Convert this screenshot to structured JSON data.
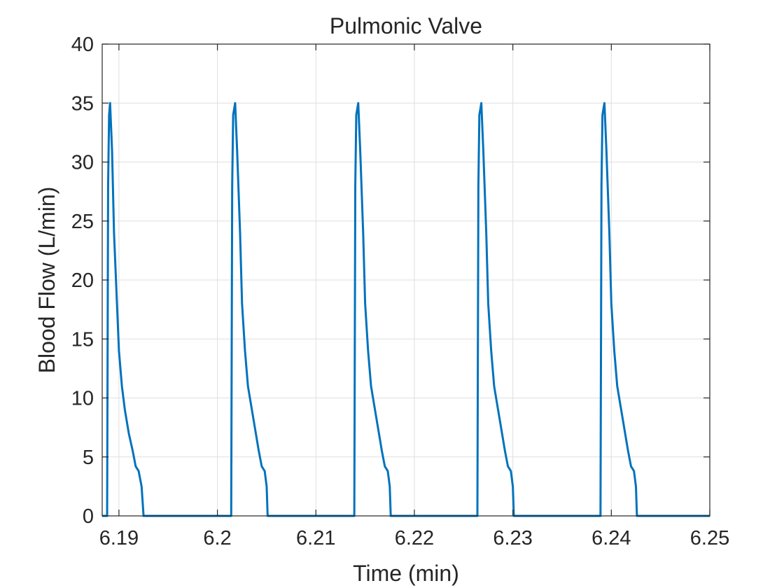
{
  "chart_data": {
    "type": "line",
    "title": "Pulmonic Valve",
    "xlabel": "Time (min)",
    "ylabel": "Blood Flow (L/min)",
    "xlim": [
      6.1883,
      6.25
    ],
    "ylim": [
      0,
      40
    ],
    "xticks": [
      6.19,
      6.2,
      6.21,
      6.22,
      6.23,
      6.24,
      6.25
    ],
    "xtick_labels": [
      "6.19",
      "6.2",
      "6.21",
      "6.22",
      "6.23",
      "6.24",
      "6.25"
    ],
    "yticks": [
      0,
      5,
      10,
      15,
      20,
      25,
      30,
      35,
      40
    ],
    "ytick_labels": [
      "0",
      "5",
      "10",
      "15",
      "20",
      "25",
      "30",
      "35",
      "40"
    ],
    "grid": true,
    "line_color": "#0072BD",
    "series": [
      {
        "x": [
          6.1883,
          6.1888,
          6.1889,
          6.189,
          6.1891,
          6.1893,
          6.1895,
          6.1898,
          6.19,
          6.1903,
          6.1906,
          6.191,
          6.1914,
          6.1917,
          6.192,
          6.1923,
          6.1925,
          6.1926,
          6.193,
          6.2012,
          6.2014,
          6.2015,
          6.2016,
          6.2018,
          6.202,
          6.2023,
          6.2025,
          6.2028,
          6.2031,
          6.2035,
          6.2039,
          6.2042,
          6.2045,
          6.2048,
          6.205,
          6.2051,
          6.2055,
          6.2137,
          6.2139,
          6.214,
          6.2141,
          6.2143,
          6.2145,
          6.2148,
          6.215,
          6.2153,
          6.2156,
          6.216,
          6.2164,
          6.2167,
          6.217,
          6.2173,
          6.2175,
          6.2176,
          6.218,
          6.2262,
          6.2264,
          6.2265,
          6.2266,
          6.2268,
          6.227,
          6.2273,
          6.2275,
          6.2278,
          6.2281,
          6.2285,
          6.2289,
          6.2292,
          6.2295,
          6.2298,
          6.23,
          6.2301,
          6.2305,
          6.2387,
          6.2389,
          6.239,
          6.2391,
          6.2393,
          6.2395,
          6.2398,
          6.24,
          6.2403,
          6.2406,
          6.241,
          6.2414,
          6.2417,
          6.242,
          6.2423,
          6.2425,
          6.2426,
          6.25
        ],
        "y": [
          0,
          0,
          28,
          34,
          35,
          31,
          24,
          18,
          14,
          11,
          9,
          7,
          5.5,
          4.2,
          3.8,
          2.5,
          0,
          0,
          0,
          0,
          0,
          28,
          34,
          35,
          31,
          24,
          18,
          14,
          11,
          9,
          7,
          5.5,
          4.2,
          3.8,
          2.5,
          0,
          0,
          0,
          0,
          28,
          34,
          35,
          31,
          24,
          18,
          14,
          11,
          9,
          7,
          5.5,
          4.2,
          3.8,
          2.5,
          0,
          0,
          0,
          0,
          28,
          34,
          35,
          31,
          24,
          18,
          14,
          11,
          9,
          7,
          5.5,
          4.2,
          3.8,
          2.5,
          0,
          0,
          0,
          0,
          28,
          34,
          35,
          31,
          24,
          18,
          14,
          11,
          9,
          7,
          5.5,
          4.2,
          3.8,
          2.5,
          0,
          0
        ]
      }
    ]
  }
}
